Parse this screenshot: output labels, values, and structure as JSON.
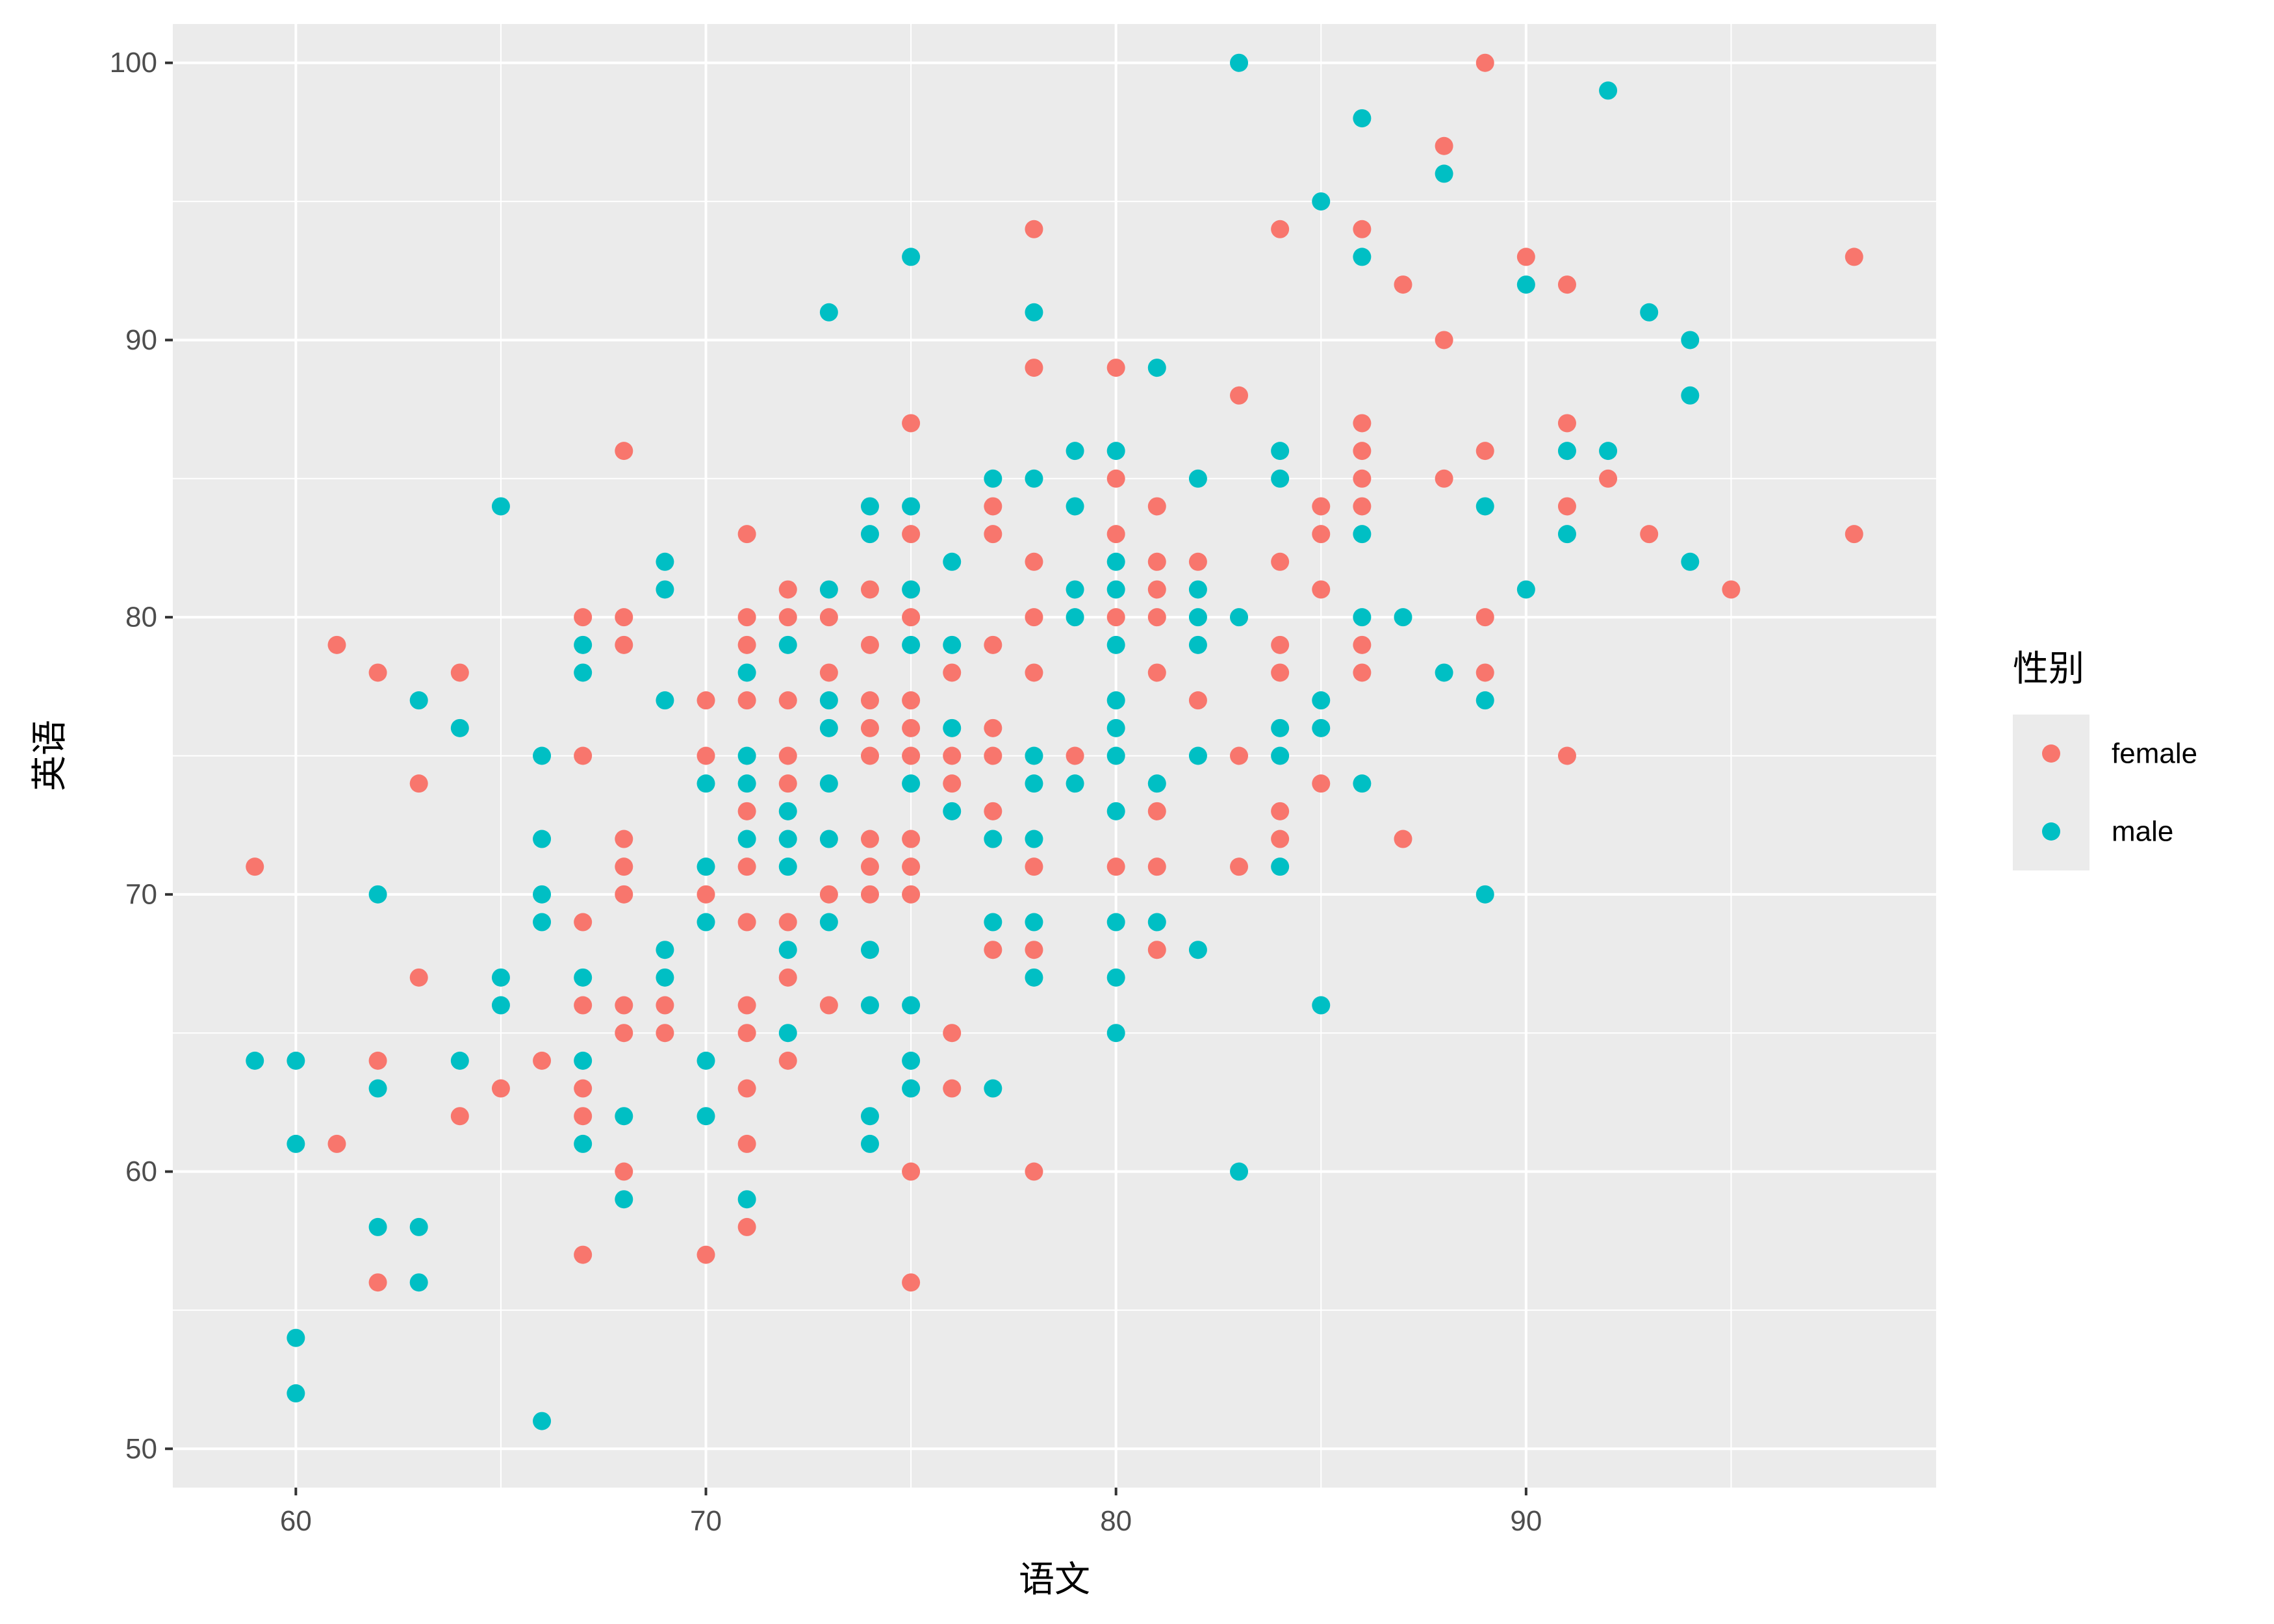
{
  "chart_data": {
    "type": "scatter",
    "title": "",
    "xlabel": "语文",
    "ylabel": "英语",
    "xlim": [
      57,
      100
    ],
    "ylim": [
      48.6,
      101.4
    ],
    "x_ticks": [
      60,
      70,
      80,
      90
    ],
    "y_ticks": [
      50,
      60,
      70,
      80,
      90,
      100
    ],
    "grid": true,
    "legend_position": "right",
    "legend_title": "性别",
    "series": [
      {
        "name": "female",
        "color": "#F8766D",
        "points": [
          [
            59,
            71
          ],
          [
            61,
            79
          ],
          [
            61,
            61
          ],
          [
            62,
            78
          ],
          [
            62,
            64
          ],
          [
            62,
            56
          ],
          [
            63,
            74
          ],
          [
            63,
            67
          ],
          [
            64,
            78
          ],
          [
            64,
            62
          ],
          [
            65,
            63
          ],
          [
            66,
            64
          ],
          [
            67,
            80
          ],
          [
            67,
            75
          ],
          [
            67,
            69
          ],
          [
            67,
            66
          ],
          [
            67,
            63
          ],
          [
            67,
            62
          ],
          [
            67,
            57
          ],
          [
            68,
            86
          ],
          [
            68,
            80
          ],
          [
            68,
            79
          ],
          [
            68,
            72
          ],
          [
            68,
            71
          ],
          [
            68,
            70
          ],
          [
            68,
            66
          ],
          [
            68,
            65
          ],
          [
            68,
            60
          ],
          [
            69,
            66
          ],
          [
            69,
            65
          ],
          [
            70,
            77
          ],
          [
            70,
            75
          ],
          [
            70,
            70
          ],
          [
            70,
            57
          ],
          [
            71,
            83
          ],
          [
            71,
            80
          ],
          [
            71,
            79
          ],
          [
            71,
            77
          ],
          [
            71,
            73
          ],
          [
            71,
            71
          ],
          [
            71,
            69
          ],
          [
            71,
            66
          ],
          [
            71,
            65
          ],
          [
            71,
            63
          ],
          [
            71,
            61
          ],
          [
            71,
            58
          ],
          [
            72,
            81
          ],
          [
            72,
            80
          ],
          [
            72,
            77
          ],
          [
            72,
            75
          ],
          [
            72,
            74
          ],
          [
            72,
            69
          ],
          [
            72,
            67
          ],
          [
            72,
            64
          ],
          [
            73,
            80
          ],
          [
            73,
            78
          ],
          [
            73,
            70
          ],
          [
            73,
            66
          ],
          [
            74,
            81
          ],
          [
            74,
            79
          ],
          [
            74,
            77
          ],
          [
            74,
            76
          ],
          [
            74,
            75
          ],
          [
            74,
            72
          ],
          [
            74,
            71
          ],
          [
            74,
            70
          ],
          [
            75,
            87
          ],
          [
            75,
            83
          ],
          [
            75,
            80
          ],
          [
            75,
            77
          ],
          [
            75,
            76
          ],
          [
            75,
            75
          ],
          [
            75,
            72
          ],
          [
            75,
            71
          ],
          [
            75,
            70
          ],
          [
            75,
            60
          ],
          [
            75,
            56
          ],
          [
            76,
            78
          ],
          [
            76,
            75
          ],
          [
            76,
            74
          ],
          [
            76,
            65
          ],
          [
            76,
            63
          ],
          [
            77,
            84
          ],
          [
            77,
            83
          ],
          [
            77,
            79
          ],
          [
            77,
            76
          ],
          [
            77,
            75
          ],
          [
            77,
            73
          ],
          [
            77,
            68
          ],
          [
            78,
            94
          ],
          [
            78,
            89
          ],
          [
            78,
            82
          ],
          [
            78,
            80
          ],
          [
            78,
            78
          ],
          [
            78,
            71
          ],
          [
            78,
            68
          ],
          [
            78,
            60
          ],
          [
            79,
            75
          ],
          [
            80,
            89
          ],
          [
            80,
            85
          ],
          [
            80,
            83
          ],
          [
            80,
            80
          ],
          [
            80,
            71
          ],
          [
            81,
            84
          ],
          [
            81,
            82
          ],
          [
            81,
            81
          ],
          [
            81,
            80
          ],
          [
            81,
            78
          ],
          [
            81,
            73
          ],
          [
            81,
            71
          ],
          [
            81,
            68
          ],
          [
            82,
            82
          ],
          [
            82,
            77
          ],
          [
            83,
            88
          ],
          [
            83,
            75
          ],
          [
            83,
            71
          ],
          [
            84,
            94
          ],
          [
            84,
            82
          ],
          [
            84,
            79
          ],
          [
            84,
            78
          ],
          [
            84,
            73
          ],
          [
            84,
            72
          ],
          [
            85,
            84
          ],
          [
            85,
            83
          ],
          [
            85,
            81
          ],
          [
            85,
            74
          ],
          [
            86,
            94
          ],
          [
            86,
            87
          ],
          [
            86,
            86
          ],
          [
            86,
            85
          ],
          [
            86,
            84
          ],
          [
            86,
            79
          ],
          [
            86,
            78
          ],
          [
            87,
            92
          ],
          [
            87,
            72
          ],
          [
            88,
            97
          ],
          [
            88,
            90
          ],
          [
            88,
            85
          ],
          [
            89,
            100
          ],
          [
            89,
            86
          ],
          [
            89,
            80
          ],
          [
            89,
            78
          ],
          [
            90,
            93
          ],
          [
            91,
            92
          ],
          [
            91,
            87
          ],
          [
            91,
            84
          ],
          [
            91,
            75
          ],
          [
            92,
            85
          ],
          [
            93,
            83
          ],
          [
            95,
            81
          ],
          [
            98,
            93
          ],
          [
            98,
            83
          ]
        ]
      },
      {
        "name": "male",
        "color": "#00BFC4",
        "points": [
          [
            59,
            64
          ],
          [
            60,
            64
          ],
          [
            60,
            61
          ],
          [
            60,
            54
          ],
          [
            60,
            52
          ],
          [
            62,
            70
          ],
          [
            62,
            63
          ],
          [
            62,
            58
          ],
          [
            63,
            77
          ],
          [
            63,
            58
          ],
          [
            63,
            56
          ],
          [
            64,
            76
          ],
          [
            64,
            64
          ],
          [
            65,
            84
          ],
          [
            65,
            67
          ],
          [
            65,
            66
          ],
          [
            66,
            75
          ],
          [
            66,
            72
          ],
          [
            66,
            70
          ],
          [
            66,
            69
          ],
          [
            66,
            51
          ],
          [
            67,
            79
          ],
          [
            67,
            78
          ],
          [
            67,
            67
          ],
          [
            67,
            64
          ],
          [
            67,
            61
          ],
          [
            68,
            62
          ],
          [
            68,
            59
          ],
          [
            69,
            82
          ],
          [
            69,
            81
          ],
          [
            69,
            77
          ],
          [
            69,
            68
          ],
          [
            69,
            67
          ],
          [
            70,
            74
          ],
          [
            70,
            71
          ],
          [
            70,
            69
          ],
          [
            70,
            64
          ],
          [
            70,
            62
          ],
          [
            71,
            78
          ],
          [
            71,
            75
          ],
          [
            71,
            74
          ],
          [
            71,
            72
          ],
          [
            71,
            59
          ],
          [
            72,
            79
          ],
          [
            72,
            73
          ],
          [
            72,
            72
          ],
          [
            72,
            71
          ],
          [
            72,
            68
          ],
          [
            72,
            65
          ],
          [
            73,
            91
          ],
          [
            73,
            81
          ],
          [
            73,
            77
          ],
          [
            73,
            76
          ],
          [
            73,
            74
          ],
          [
            73,
            72
          ],
          [
            73,
            69
          ],
          [
            74,
            84
          ],
          [
            74,
            83
          ],
          [
            74,
            68
          ],
          [
            74,
            66
          ],
          [
            74,
            62
          ],
          [
            74,
            61
          ],
          [
            75,
            93
          ],
          [
            75,
            84
          ],
          [
            75,
            81
          ],
          [
            75,
            79
          ],
          [
            75,
            74
          ],
          [
            75,
            66
          ],
          [
            75,
            64
          ],
          [
            75,
            63
          ],
          [
            76,
            82
          ],
          [
            76,
            79
          ],
          [
            76,
            76
          ],
          [
            76,
            73
          ],
          [
            77,
            85
          ],
          [
            77,
            72
          ],
          [
            77,
            69
          ],
          [
            77,
            63
          ],
          [
            78,
            91
          ],
          [
            78,
            85
          ],
          [
            78,
            75
          ],
          [
            78,
            74
          ],
          [
            78,
            72
          ],
          [
            78,
            69
          ],
          [
            78,
            67
          ],
          [
            79,
            86
          ],
          [
            79,
            84
          ],
          [
            79,
            81
          ],
          [
            79,
            80
          ],
          [
            79,
            74
          ],
          [
            80,
            86
          ],
          [
            80,
            82
          ],
          [
            80,
            81
          ],
          [
            80,
            79
          ],
          [
            80,
            77
          ],
          [
            80,
            76
          ],
          [
            80,
            75
          ],
          [
            80,
            73
          ],
          [
            80,
            69
          ],
          [
            80,
            67
          ],
          [
            80,
            65
          ],
          [
            81,
            89
          ],
          [
            81,
            74
          ],
          [
            81,
            69
          ],
          [
            82,
            85
          ],
          [
            82,
            81
          ],
          [
            82,
            80
          ],
          [
            82,
            79
          ],
          [
            82,
            75
          ],
          [
            82,
            68
          ],
          [
            83,
            100
          ],
          [
            83,
            80
          ],
          [
            83,
            60
          ],
          [
            84,
            86
          ],
          [
            84,
            85
          ],
          [
            84,
            76
          ],
          [
            84,
            75
          ],
          [
            84,
            71
          ],
          [
            85,
            95
          ],
          [
            85,
            77
          ],
          [
            85,
            76
          ],
          [
            85,
            66
          ],
          [
            86,
            98
          ],
          [
            86,
            93
          ],
          [
            86,
            83
          ],
          [
            86,
            80
          ],
          [
            86,
            74
          ],
          [
            87,
            80
          ],
          [
            88,
            96
          ],
          [
            88,
            78
          ],
          [
            89,
            84
          ],
          [
            89,
            77
          ],
          [
            89,
            70
          ],
          [
            90,
            92
          ],
          [
            90,
            81
          ],
          [
            91,
            86
          ],
          [
            91,
            83
          ],
          [
            92,
            99
          ],
          [
            92,
            86
          ],
          [
            93,
            91
          ],
          [
            94,
            90
          ],
          [
            94,
            88
          ],
          [
            94,
            82
          ]
        ]
      }
    ]
  }
}
